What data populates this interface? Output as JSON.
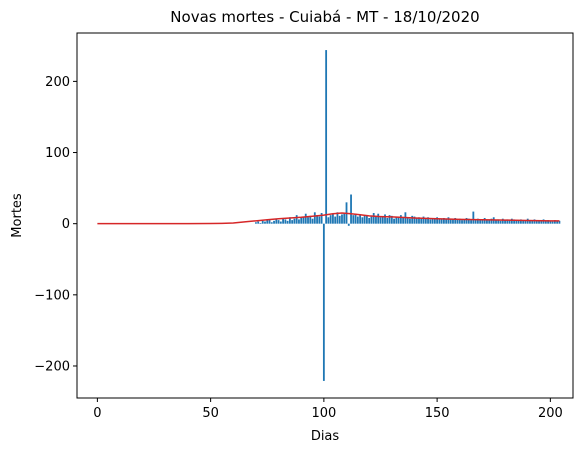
{
  "chart_data": {
    "type": "bar",
    "title": "Novas mortes - Cuiabá - MT - 18/10/2020",
    "xlabel": "Dias",
    "ylabel": "Mortes",
    "xlim": [
      -9,
      210
    ],
    "ylim": [
      -245,
      268
    ],
    "xticks": [
      0,
      50,
      100,
      150,
      200
    ],
    "yticks": [
      -200,
      -100,
      0,
      100,
      200
    ],
    "ytick_labels": [
      "−200",
      "−100",
      "0",
      "100",
      "200"
    ],
    "grid": false,
    "colors": {
      "bars": "#1f77b4",
      "trend": "#d62728"
    },
    "series": [
      {
        "name": "",
        "kind": "bar",
        "x": [
          70,
          71,
          72,
          73,
          74,
          75,
          76,
          77,
          78,
          79,
          80,
          81,
          82,
          83,
          84,
          85,
          86,
          87,
          88,
          89,
          90,
          91,
          92,
          93,
          94,
          95,
          96,
          97,
          98,
          99,
          100,
          101,
          102,
          103,
          104,
          105,
          106,
          107,
          108,
          109,
          110,
          111,
          112,
          113,
          114,
          115,
          116,
          117,
          118,
          119,
          120,
          121,
          122,
          123,
          124,
          125,
          126,
          127,
          128,
          129,
          130,
          131,
          132,
          133,
          134,
          135,
          136,
          137,
          138,
          139,
          140,
          141,
          142,
          143,
          144,
          145,
          146,
          147,
          148,
          149,
          150,
          151,
          152,
          153,
          154,
          155,
          156,
          157,
          158,
          159,
          160,
          161,
          162,
          163,
          164,
          165,
          166,
          167,
          168,
          169,
          170,
          171,
          172,
          173,
          174,
          175,
          176,
          177,
          178,
          179,
          180,
          181,
          182,
          183,
          184,
          185,
          186,
          187,
          188,
          189,
          190,
          191,
          192,
          193,
          194,
          195,
          196,
          197,
          198,
          199,
          200,
          201,
          202,
          203,
          204
        ],
        "values": [
          2,
          3,
          1,
          4,
          3,
          5,
          6,
          2,
          4,
          7,
          5,
          3,
          8,
          6,
          4,
          9,
          5,
          7,
          12,
          6,
          8,
          10,
          14,
          9,
          11,
          7,
          16,
          12,
          10,
          15,
          -221,
          244,
          9,
          12,
          14,
          10,
          16,
          11,
          13,
          15,
          30,
          -3,
          41,
          12,
          14,
          10,
          13,
          9,
          11,
          12,
          8,
          10,
          15,
          11,
          14,
          9,
          10,
          13,
          8,
          12,
          11,
          7,
          10,
          9,
          12,
          8,
          16,
          9,
          7,
          11,
          10,
          8,
          9,
          7,
          10,
          8,
          9,
          6,
          7,
          8,
          9,
          7,
          6,
          8,
          7,
          9,
          6,
          7,
          8,
          6,
          7,
          5,
          6,
          8,
          7,
          5,
          17,
          6,
          7,
          5,
          6,
          8,
          5,
          6,
          7,
          9,
          5,
          6,
          4,
          7,
          5,
          6,
          5,
          7,
          6,
          4,
          5,
          6,
          5,
          4,
          7,
          5,
          4,
          6,
          5,
          4,
          5,
          6,
          4,
          5,
          4,
          3,
          5,
          4,
          4
        ]
      },
      {
        "name": "",
        "kind": "line",
        "x": [
          0,
          10,
          20,
          30,
          40,
          50,
          55,
          60,
          65,
          70,
          75,
          80,
          85,
          90,
          95,
          100,
          104,
          108,
          112,
          116,
          120,
          125,
          130,
          140,
          150,
          160,
          170,
          180,
          190,
          200,
          204
        ],
        "values": [
          0,
          0,
          0,
          0,
          0,
          0.2,
          0.5,
          1,
          2.5,
          4,
          5.5,
          7,
          8,
          9,
          10.5,
          12,
          14,
          15,
          14,
          12.5,
          11,
          10,
          9.5,
          8,
          7,
          6,
          5.5,
          5,
          4.5,
          4,
          4
        ]
      }
    ]
  }
}
